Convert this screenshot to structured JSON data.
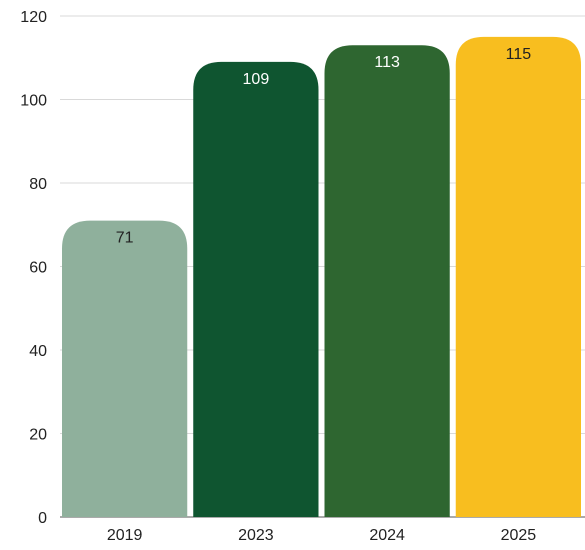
{
  "chart_data": {
    "type": "bar",
    "categories": [
      "2019",
      "2023",
      "2024",
      "2025"
    ],
    "values": [
      71,
      109,
      113,
      115
    ],
    "data_labels": [
      "71",
      "109",
      "113",
      "115"
    ],
    "colors": [
      "#8fb09c",
      "#0f5530",
      "#2e6630",
      "#f8be1f"
    ],
    "label_colors": [
      "#222222",
      "#ffffff",
      "#ffffff",
      "#222222"
    ],
    "title": "",
    "xlabel": "",
    "ylabel": "",
    "ylim": [
      0,
      120
    ],
    "yticks": [
      "0",
      "20",
      "40",
      "60",
      "80",
      "100",
      "120"
    ],
    "grid": true,
    "legend": "none"
  }
}
